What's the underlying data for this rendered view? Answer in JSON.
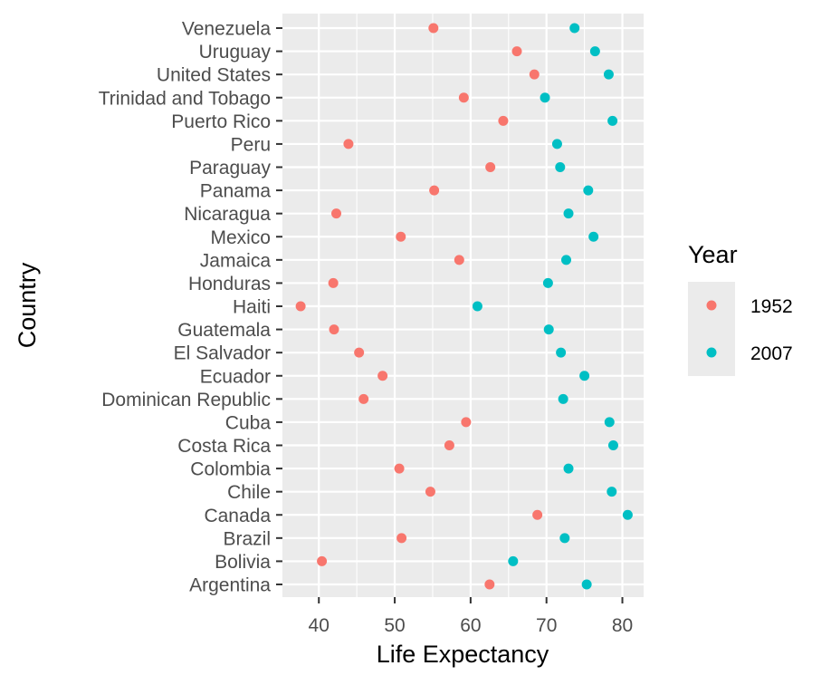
{
  "chart_data": {
    "type": "scatter",
    "xlabel": "Life Expectancy",
    "ylabel": "Country",
    "xlim": [
      35.2,
      82.8
    ],
    "xticks": [
      40,
      50,
      60,
      70,
      80
    ],
    "xtick_labels": [
      "40",
      "50",
      "60",
      "70",
      "80"
    ],
    "grid": true,
    "legend": {
      "title": "Year",
      "position": "right"
    },
    "categories": [
      "Argentina",
      "Bolivia",
      "Brazil",
      "Canada",
      "Chile",
      "Colombia",
      "Costa Rica",
      "Cuba",
      "Dominican Republic",
      "Ecuador",
      "El Salvador",
      "Guatemala",
      "Haiti",
      "Honduras",
      "Jamaica",
      "Mexico",
      "Nicaragua",
      "Panama",
      "Paraguay",
      "Peru",
      "Puerto Rico",
      "Trinidad and Tobago",
      "United States",
      "Uruguay",
      "Venezuela"
    ],
    "series": [
      {
        "name": "1952",
        "color": "#F8766D",
        "values": [
          62.5,
          40.4,
          50.9,
          68.8,
          54.7,
          50.6,
          57.2,
          59.4,
          45.9,
          48.4,
          45.3,
          42.0,
          37.6,
          41.9,
          58.5,
          50.8,
          42.3,
          55.2,
          62.6,
          43.9,
          64.3,
          59.1,
          68.4,
          66.1,
          55.1
        ]
      },
      {
        "name": "2007",
        "color": "#00BFC4",
        "values": [
          75.3,
          65.6,
          72.4,
          80.7,
          78.6,
          72.9,
          78.8,
          78.3,
          72.2,
          75.0,
          71.9,
          70.3,
          60.9,
          70.2,
          72.6,
          76.2,
          72.9,
          75.5,
          71.8,
          71.4,
          78.7,
          69.8,
          78.2,
          76.4,
          73.7
        ]
      }
    ]
  }
}
